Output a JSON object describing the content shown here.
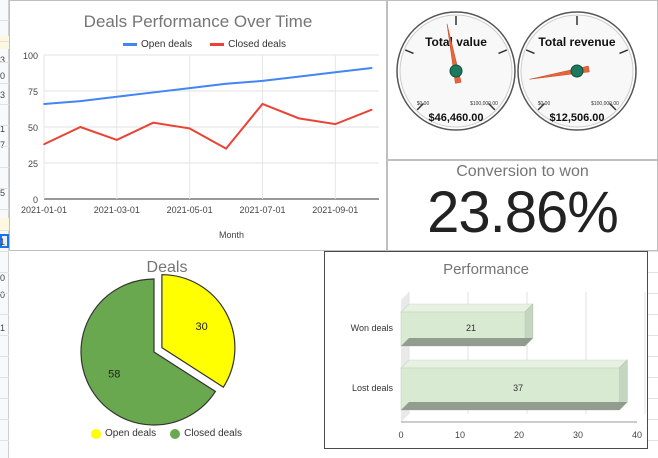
{
  "spreadsheet": {
    "row_numbers": [
      "3",
      "0",
      "3",
      "1",
      "7",
      "5",
      "1",
      "0",
      "0",
      "1"
    ]
  },
  "line_chart": {
    "title": "Deals Performance Over Time",
    "legend": [
      {
        "label": "Open deals",
        "color": "#4285f4"
      },
      {
        "label": "Closed deals",
        "color": "#ea4335"
      }
    ],
    "xlabel": "Month",
    "x_ticks": [
      "2021-01-01",
      "2021-03-01",
      "2021-05-01",
      "2021-07-01",
      "2021-09-01"
    ],
    "y_ticks": [
      "0",
      "25",
      "50",
      "75",
      "100"
    ]
  },
  "gauges": [
    {
      "title": "Total value",
      "value_text": "$46,460.00",
      "min_label": "$0.00",
      "max_label": "$100,000.00",
      "fraction": 0.46
    },
    {
      "title": "Total revenue",
      "value_text": "$12,506.00",
      "min_label": "$0.00",
      "max_label": "$100,000.00",
      "fraction": 0.13
    }
  ],
  "scorecard": {
    "title": "Conversion to won",
    "value": "23.86%"
  },
  "pie_chart": {
    "title": "Deals",
    "legend": [
      {
        "label": "Open deals",
        "color": "#ffff00"
      },
      {
        "label": "Closed deals",
        "color": "#6aa84f"
      }
    ]
  },
  "bar_chart": {
    "title": "Performance",
    "x_ticks": [
      "0",
      "10",
      "20",
      "30",
      "40"
    ]
  },
  "chart_data": [
    {
      "type": "line",
      "title": "Deals Performance Over Time",
      "xlabel": "Month",
      "ylabel": "",
      "ylim": [
        0,
        100
      ],
      "x": [
        "2021-01-01",
        "2021-02-01",
        "2021-03-01",
        "2021-04-01",
        "2021-05-01",
        "2021-06-01",
        "2021-07-01",
        "2021-08-01",
        "2021-09-01",
        "2021-10-01"
      ],
      "series": [
        {
          "name": "Open deals",
          "color": "#4285f4",
          "values": [
            66,
            68,
            71,
            74,
            77,
            80,
            82,
            85,
            88,
            91
          ]
        },
        {
          "name": "Closed deals",
          "color": "#ea4335",
          "values": [
            38,
            50,
            41,
            53,
            49,
            35,
            66,
            56,
            52,
            62
          ]
        }
      ],
      "grid": true,
      "legend": "top"
    },
    {
      "type": "pie",
      "title": "Deals",
      "categories": [
        "Open deals",
        "Closed deals"
      ],
      "values": [
        30,
        58
      ],
      "colors": [
        "#ffff00",
        "#6aa84f"
      ],
      "exploded": [
        "Open deals"
      ],
      "legend": "bottom"
    },
    {
      "type": "bar",
      "orientation": "horizontal",
      "title": "Performance",
      "categories": [
        "Won deals",
        "Lost deals"
      ],
      "values": [
        21,
        37
      ],
      "xlim": [
        0,
        40
      ],
      "color": "#d9ead3",
      "style": "3d",
      "grid": true
    }
  ]
}
